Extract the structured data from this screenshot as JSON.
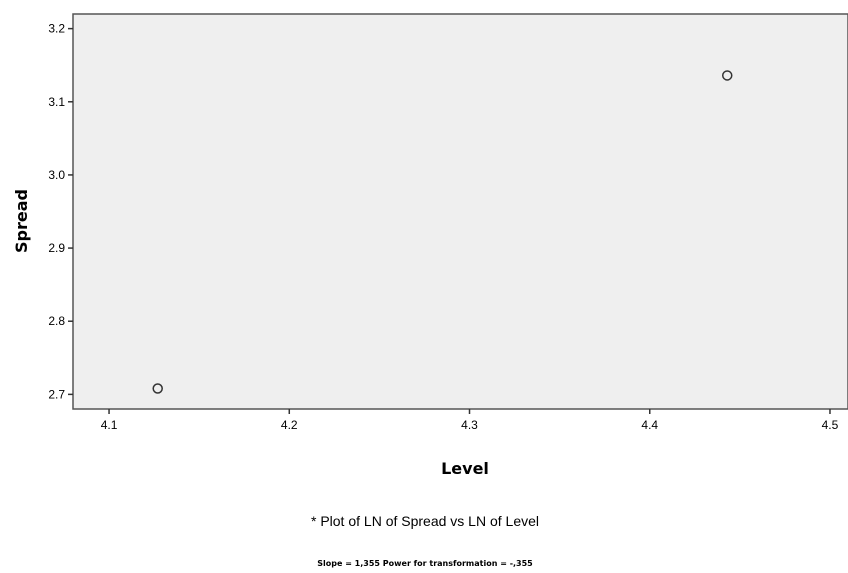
{
  "chart_data": {
    "type": "scatter",
    "title": "",
    "xlabel": "Level",
    "ylabel": "Spread",
    "xlim": [
      4.08,
      4.51
    ],
    "ylim": [
      2.68,
      3.22
    ],
    "x_ticks": [
      "4.1",
      "4.2",
      "4.3",
      "4.4",
      "4.5"
    ],
    "y_ticks": [
      "2.7",
      "2.8",
      "2.9",
      "3.0",
      "3.1",
      "3.2"
    ],
    "x_tick_values": [
      4.1,
      4.2,
      4.3,
      4.4,
      4.5
    ],
    "y_tick_values": [
      2.7,
      2.8,
      2.9,
      3.0,
      3.1,
      3.2
    ],
    "points": [
      {
        "x": 4.127,
        "y": 2.708
      },
      {
        "x": 4.443,
        "y": 3.136
      }
    ],
    "grid": false,
    "legend": "none",
    "marker": "hollow-circle",
    "plot_background": "#efefef",
    "footnote": "* Plot of LN of Spread vs LN of Level",
    "subnote": "Slope = 1,355 Power for transformation = -,355"
  }
}
